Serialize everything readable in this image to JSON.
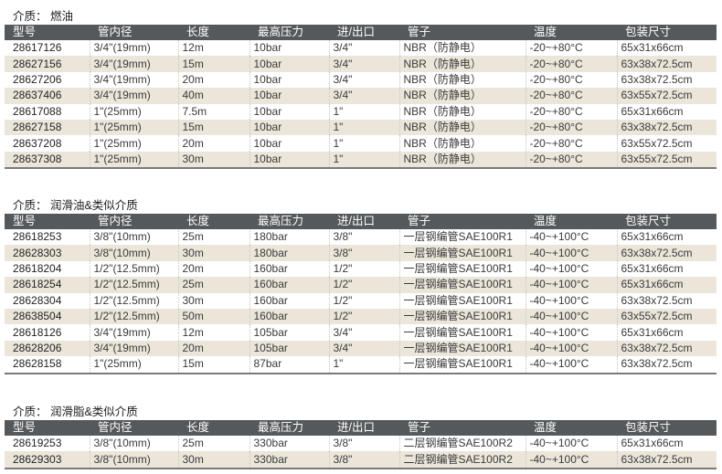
{
  "columns": [
    "型号",
    "管内径",
    "长度",
    "最高压力",
    "进/出口",
    "管子",
    "温度",
    "包装尺寸"
  ],
  "colors": {
    "header_bg": "#55595c",
    "stripe": "#ece6da"
  },
  "sections": [
    {
      "title": "介质：  燃油",
      "rows": [
        [
          "28617126",
          "3/4\"(19mm)",
          "12m",
          "10bar",
          "3/4\"",
          "NBR（防静电）",
          "-20~+80°C",
          "65x31x66cm"
        ],
        [
          "28627156",
          "3/4\"(19mm)",
          "15m",
          "10bar",
          "3/4\"",
          "NBR（防静电）",
          "-20~+80°C",
          "63x38x72.5cm"
        ],
        [
          "28627206",
          "3/4\"(19mm)",
          "20m",
          "10bar",
          "3/4\"",
          "NBR（防静电）",
          "-20~+80°C",
          "63x38x72.5cm"
        ],
        [
          "28637406",
          "3/4\"(19mm)",
          "40m",
          "10bar",
          "3/4\"",
          "NBR（防静电）",
          "-20~+80°C",
          "63x55x72.5cm"
        ],
        [
          "28617088",
          "1\"(25mm)",
          "7.5m",
          "10bar",
          "1\"",
          "NBR（防静电）",
          "-20~+80°C",
          "65x31x66cm"
        ],
        [
          "28627158",
          "1\"(25mm)",
          "15m",
          "10bar",
          "1\"",
          "NBR（防静电）",
          "-20~+80°C",
          "63x38x72.5cm"
        ],
        [
          "28637208",
          "1\"(25mm)",
          "20m",
          "10bar",
          "1\"",
          "NBR（防静电）",
          "-20~+80°C",
          "63x55x72.5cm"
        ],
        [
          "28637308",
          "1\"(25mm)",
          "30m",
          "10bar",
          "1\"",
          "NBR（防静电）",
          "-20~+80°C",
          "63x55x72.5cm"
        ]
      ]
    },
    {
      "title": "介质：  润滑油&类似介质",
      "rows": [
        [
          "28618253",
          "3/8\"(10mm)",
          "25m",
          "180bar",
          "3/8\"",
          "一层钢编管SAE100R1",
          "-40~+100°C",
          "65x31x66cm"
        ],
        [
          "28628303",
          "3/8\"(10mm)",
          "30m",
          "180bar",
          "3/8\"",
          "一层钢编管SAE100R1",
          "-40~+100°C",
          "63x38x72.5cm"
        ],
        [
          "28618204",
          "1/2\"(12.5mm)",
          "20m",
          "160bar",
          "1/2\"",
          "一层钢编管SAE100R1",
          "-40~+100°C",
          "65x31x66cm"
        ],
        [
          "28618254",
          "1/2\"(12.5mm)",
          "25m",
          "160bar",
          "1/2\"",
          "一层钢编管SAE100R1",
          "-40~+100°C",
          "65x31x66cm"
        ],
        [
          "28628304",
          "1/2\"(12.5mm)",
          "30m",
          "160bar",
          "1/2\"",
          "一层钢编管SAE100R1",
          "-40~+100°C",
          "63x38x72.5cm"
        ],
        [
          "28638504",
          "1/2\"(12.5mm)",
          "50m",
          "160bar",
          "1/2\"",
          "一层钢编管SAE100R1",
          "-40~+100°C",
          "63x55x72.5cm"
        ],
        [
          "28618126",
          "3/4\"(19mm)",
          "12m",
          "105bar",
          "3/4\"",
          "一层钢编管SAE100R1",
          "-40~+100°C",
          "65x31x66cm"
        ],
        [
          "28628206",
          "3/4\"(19mm)",
          "20m",
          "105bar",
          "3/4\"",
          "一层钢编管SAE100R1",
          "-40~+100°C",
          "63x38x72.5cm"
        ],
        [
          "28628158",
          "1\"(25mm)",
          "15m",
          "87bar",
          "1\"",
          "一层钢编管SAE100R1",
          "-40~+100°C",
          "63x38x72.5cm"
        ]
      ]
    },
    {
      "title": "介质：  润滑脂&类似介质",
      "rows": [
        [
          "28619253",
          "3/8\"(10mm)",
          "25m",
          "330bar",
          "3/8\"",
          "二层钢编管SAE100R2",
          "-40~+100°C",
          "65x31x66cm"
        ],
        [
          "28629303",
          "3/8\"(10mm)",
          "30m",
          "330bar",
          "3/8\"",
          "二层钢编管SAE100R2",
          "-40~+100°C",
          "63x38x72.5cm"
        ]
      ]
    }
  ]
}
